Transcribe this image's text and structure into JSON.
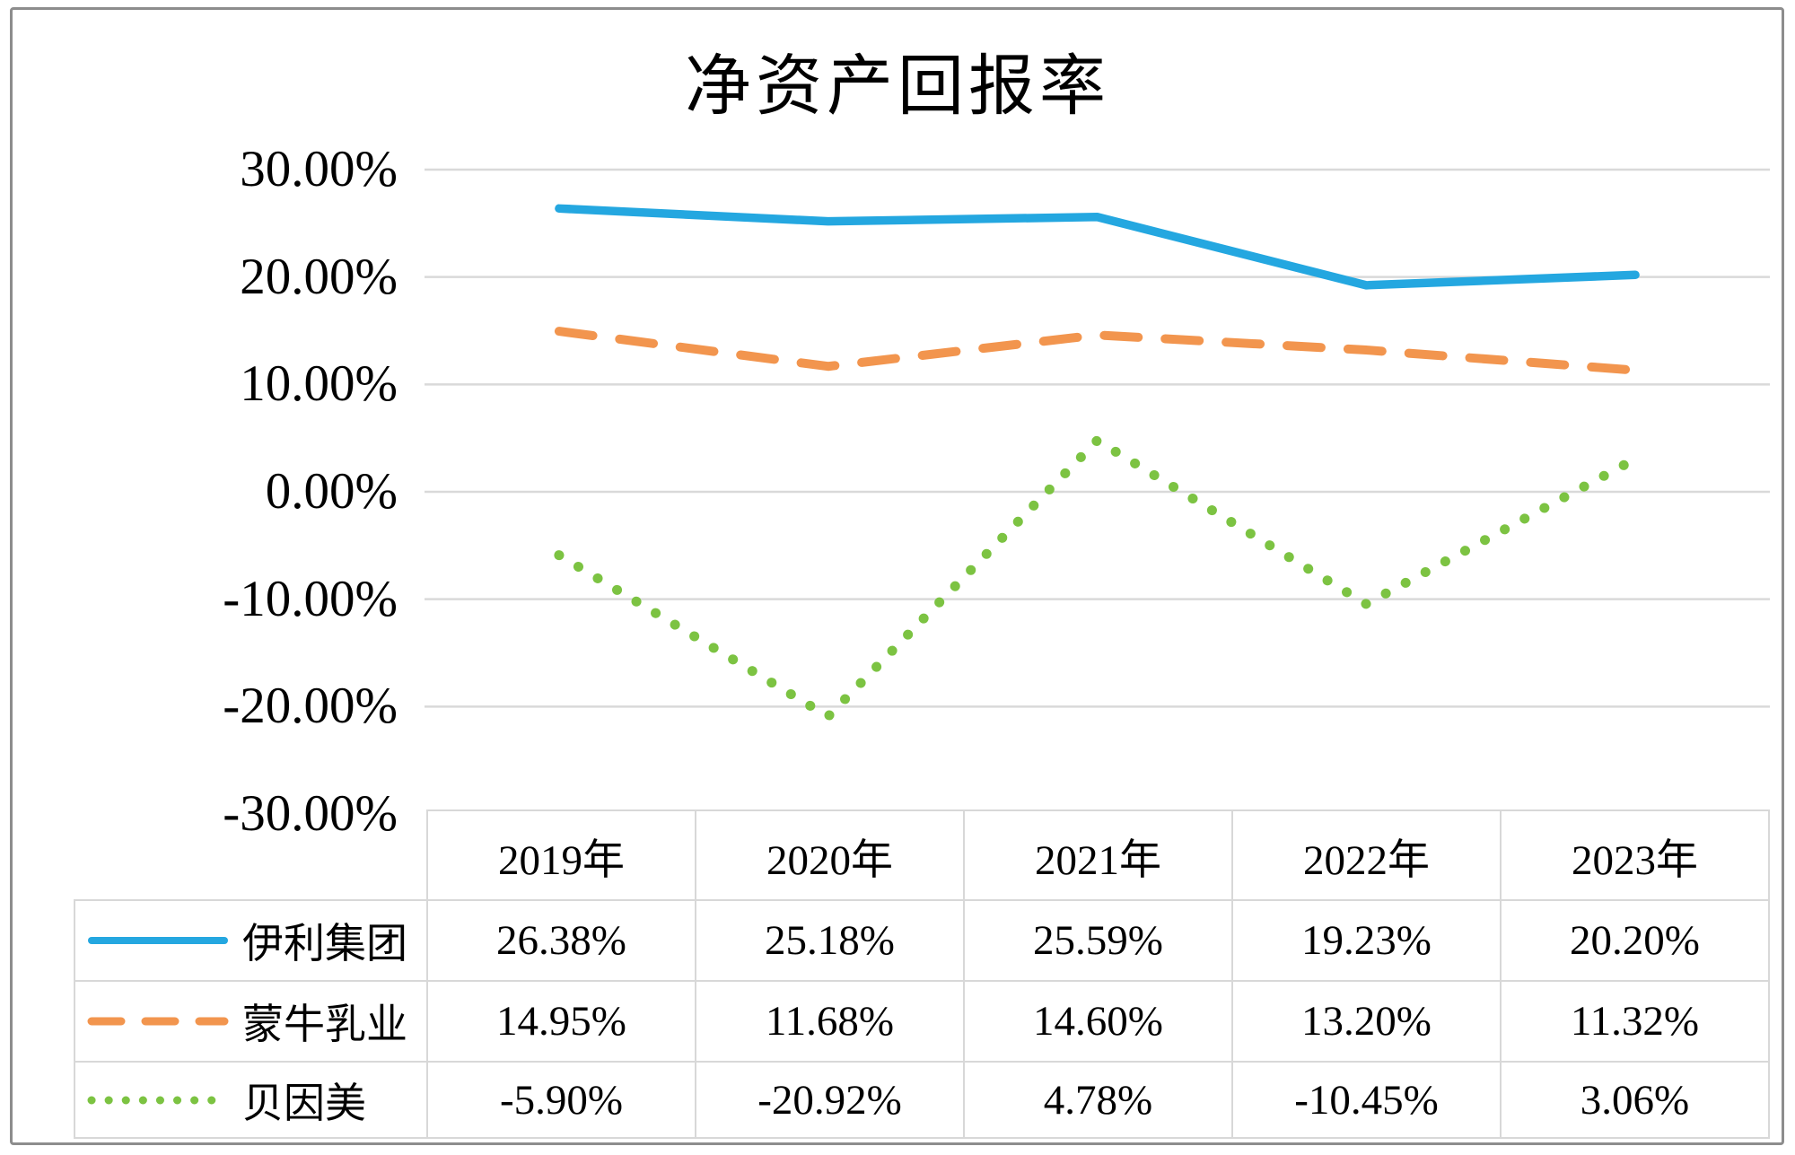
{
  "chart": {
    "title": "净资产回报率"
  },
  "chart_data": {
    "type": "line",
    "title": "净资产回报率",
    "categories": [
      "2019年",
      "2020年",
      "2021年",
      "2022年",
      "2023年"
    ],
    "series": [
      {
        "name": "伊利集团",
        "style": "solid",
        "color": "#24a7e0",
        "values": [
          26.38,
          25.18,
          25.59,
          19.23,
          20.2
        ],
        "labels": [
          "26.38%",
          "25.18%",
          "25.59%",
          "19.23%",
          "20.20%"
        ]
      },
      {
        "name": "蒙牛乳业",
        "style": "dashed",
        "color": "#f2954e",
        "values": [
          14.95,
          11.68,
          14.6,
          13.2,
          11.32
        ],
        "labels": [
          "14.95%",
          "11.68%",
          "14.60%",
          "13.20%",
          "11.32%"
        ]
      },
      {
        "name": "贝因美",
        "style": "dotted",
        "color": "#7cc342",
        "values": [
          -5.9,
          -20.92,
          4.78,
          -10.45,
          3.06
        ],
        "labels": [
          "-5.90%",
          "-20.92%",
          "4.78%",
          "-10.45%",
          "3.06%"
        ]
      }
    ],
    "y_ticks": [
      {
        "label": "30.00%",
        "value": 30
      },
      {
        "label": "20.00%",
        "value": 20
      },
      {
        "label": "10.00%",
        "value": 10
      },
      {
        "label": "0.00%",
        "value": 0
      },
      {
        "label": "-10.00%",
        "value": -10
      },
      {
        "label": "-20.00%",
        "value": -20
      },
      {
        "label": "-30.00%",
        "value": -30
      }
    ],
    "ylim": [
      -30,
      30
    ],
    "grid": true,
    "legend_position": "table-rows-left",
    "gridline_color": "#d9d9d9",
    "table_border_color": "#d8d8d8",
    "frame_border_color": "#8d8d8d"
  }
}
